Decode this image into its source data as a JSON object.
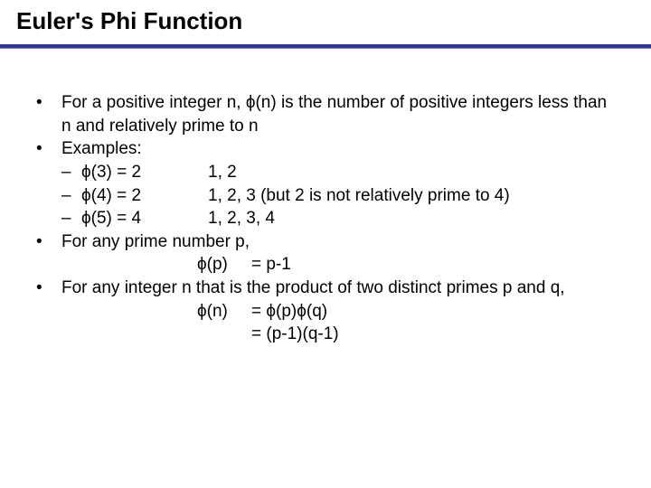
{
  "title": "Euler's Phi Function",
  "bullets": {
    "def": "For a positive integer n, ϕ(n) is the number of positive integers less than n and relatively prime to n",
    "examples_label": "Examples:",
    "ex1_lhs": "ϕ(3) = 2",
    "ex1_rhs": "1, 2",
    "ex2_lhs": "ϕ(4) = 2",
    "ex2_rhs": "1, 2, 3  (but 2 is not relatively prime to 4)",
    "ex3_lhs": "ϕ(5) = 4",
    "ex3_rhs": "1, 2, 3, 4",
    "prime_line": "For any prime number p,",
    "prime_eq_l": "ϕ(p)",
    "prime_eq_r": "= p-1",
    "product_line": "For any integer n that is the product of two distinct primes p and q,",
    "product_eq1_l": "ϕ(n)",
    "product_eq1_r": "= ϕ(p)ϕ(q)",
    "product_eq2_l": "",
    "product_eq2_r": "= (p-1)(q-1)"
  },
  "glyphs": {
    "bullet": "•",
    "dash": "–"
  },
  "style": {
    "title_color": "#000000",
    "underline_color": "#333399",
    "body_color": "#000000",
    "background": "#ffffff",
    "title_fontsize": 26,
    "body_fontsize": 19
  }
}
